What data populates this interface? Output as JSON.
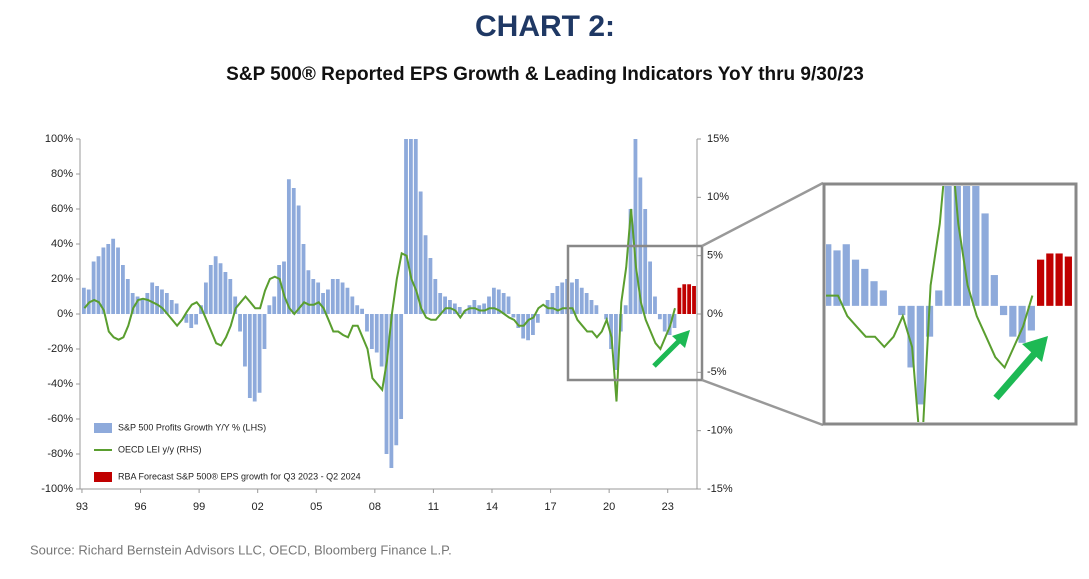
{
  "chart_data": {
    "type": "bar",
    "title": "CHART 2:",
    "subtitle": "S&P 500® Reported EPS Growth & Leading Indicators YoY thru 9/30/23",
    "source": "Source: Richard Bernstein Advisors LLC, OECD, Bloomberg Finance L.P.",
    "xlim": [
      1992.9,
      2024.5
    ],
    "xticks": [
      {
        "value": 1993,
        "label": "93"
      },
      {
        "value": 1996,
        "label": "96"
      },
      {
        "value": 1999,
        "label": "99"
      },
      {
        "value": 2002,
        "label": "02"
      },
      {
        "value": 2005,
        "label": "05"
      },
      {
        "value": 2008,
        "label": "08"
      },
      {
        "value": 2011,
        "label": "11"
      },
      {
        "value": 2014,
        "label": "14"
      },
      {
        "value": 2017,
        "label": "17"
      },
      {
        "value": 2020,
        "label": "20"
      },
      {
        "value": 2023,
        "label": "23"
      }
    ],
    "ylim": [
      -100,
      100
    ],
    "yticks": [
      {
        "value": 100,
        "label": "100%"
      },
      {
        "value": 80,
        "label": "80%"
      },
      {
        "value": 60,
        "label": "60%"
      },
      {
        "value": 40,
        "label": "40%"
      },
      {
        "value": 20,
        "label": "20%"
      },
      {
        "value": 0,
        "label": "0%"
      },
      {
        "value": -20,
        "label": "-20%"
      },
      {
        "value": -40,
        "label": "-40%"
      },
      {
        "value": -60,
        "label": "-60%"
      },
      {
        "value": -80,
        "label": "-80%"
      },
      {
        "value": -100,
        "label": "-100%"
      }
    ],
    "y2lim": [
      -15,
      15
    ],
    "y2ticks": [
      {
        "value": 15,
        "label": "15%"
      },
      {
        "value": 10,
        "label": "10%"
      },
      {
        "value": 5,
        "label": "5%"
      },
      {
        "value": 0,
        "label": "0%"
      },
      {
        "value": -5,
        "label": "-5%"
      },
      {
        "value": -10,
        "label": "-10%"
      },
      {
        "value": -15,
        "label": "-15%"
      }
    ],
    "grid": false,
    "legend": "lower-left",
    "x": [
      1993,
      1993.25,
      1993.5,
      1993.75,
      1994,
      1994.25,
      1994.5,
      1994.75,
      1995,
      1995.25,
      1995.5,
      1995.75,
      1996,
      1996.25,
      1996.5,
      1996.75,
      1997,
      1997.25,
      1997.5,
      1997.75,
      1998,
      1998.25,
      1998.5,
      1998.75,
      1999,
      1999.25,
      1999.5,
      1999.75,
      2000,
      2000.25,
      2000.5,
      2000.75,
      2001,
      2001.25,
      2001.5,
      2001.75,
      2002,
      2002.25,
      2002.5,
      2002.75,
      2003,
      2003.25,
      2003.5,
      2003.75,
      2004,
      2004.25,
      2004.5,
      2004.75,
      2005,
      2005.25,
      2005.5,
      2005.75,
      2006,
      2006.25,
      2006.5,
      2006.75,
      2007,
      2007.25,
      2007.5,
      2007.75,
      2008,
      2008.25,
      2008.5,
      2008.75,
      2009,
      2009.25,
      2009.5,
      2009.75,
      2010,
      2010.25,
      2010.5,
      2010.75,
      2011,
      2011.25,
      2011.5,
      2011.75,
      2012,
      2012.25,
      2012.5,
      2012.75,
      2013,
      2013.25,
      2013.5,
      2013.75,
      2014,
      2014.25,
      2014.5,
      2014.75,
      2015,
      2015.25,
      2015.5,
      2015.75,
      2016,
      2016.25,
      2016.5,
      2016.75,
      2017,
      2017.25,
      2017.5,
      2017.75,
      2018,
      2018.25,
      2018.5,
      2018.75,
      2019,
      2019.25,
      2019.5,
      2019.75,
      2020,
      2020.25,
      2020.5,
      2020.75,
      2021,
      2021.25,
      2021.5,
      2021.75,
      2022,
      2022.25,
      2022.5,
      2022.75,
      2023,
      2023.25
    ],
    "series": [
      {
        "name": "S&P 500 Profits Growth Y/Y % (LHS)",
        "type": "bar",
        "color": "#8eaadb",
        "values": [
          15,
          14,
          30,
          33,
          38,
          40,
          43,
          38,
          28,
          20,
          12,
          10,
          8,
          12,
          18,
          16,
          14,
          12,
          8,
          6,
          0,
          -5,
          -8,
          -6,
          5,
          18,
          28,
          33,
          29,
          24,
          20,
          10,
          -10,
          -30,
          -48,
          -50,
          -45,
          -20,
          5,
          10,
          28,
          30,
          77,
          72,
          62,
          40,
          25,
          20,
          18,
          12,
          14,
          20,
          20,
          18,
          15,
          10,
          5,
          3,
          -10,
          -20,
          -22,
          -30,
          -80,
          -88,
          -75,
          -60,
          100,
          100,
          100,
          70,
          45,
          32,
          20,
          12,
          10,
          8,
          6,
          4,
          2,
          5,
          8,
          5,
          6,
          10,
          15,
          14,
          12,
          10,
          -2,
          -8,
          -14,
          -15,
          -12,
          -5,
          0,
          8,
          12,
          16,
          18,
          20,
          18,
          20,
          15,
          12,
          8,
          5,
          0,
          -3,
          -20,
          -32,
          -10,
          5,
          60,
          100,
          78,
          60,
          30,
          10,
          -3,
          -10,
          -12,
          -8
        ]
      },
      {
        "name": "OECD LEI y/y (RHS)",
        "type": "line",
        "axis": "y2",
        "color": "#5a9e2f",
        "values": [
          0.5,
          1.0,
          1.2,
          1.0,
          0.3,
          -1.5,
          -2.0,
          -2.2,
          -2.0,
          -1.0,
          0.5,
          1.2,
          1.3,
          1.2,
          1.0,
          0.8,
          0.5,
          0.0,
          -0.5,
          -1.0,
          -0.5,
          0.2,
          0.8,
          1.0,
          0.5,
          -0.5,
          -1.5,
          -2.5,
          -2.7,
          -2.0,
          -1.0,
          0.5,
          1.0,
          1.5,
          1.0,
          0.5,
          0.5,
          2.0,
          3.0,
          3.2,
          3.0,
          1.5,
          0.5,
          0.0,
          0.5,
          1.0,
          0.8,
          0.8,
          1.0,
          0.5,
          -0.5,
          -1.5,
          -1.5,
          -1.8,
          -2.0,
          -1.0,
          -1.0,
          -2.0,
          -3.0,
          -5.5,
          -6.0,
          -6.5,
          -4.0,
          0.0,
          3.0,
          5.2,
          5.0,
          3.0,
          2.0,
          0.5,
          -0.3,
          -0.5,
          -0.5,
          0.0,
          0.5,
          0.5,
          0.3,
          -0.3,
          0.3,
          0.5,
          0.5,
          0.3,
          0.3,
          0.5,
          0.5,
          0.3,
          0.0,
          -0.3,
          -0.5,
          -1.0,
          -1.0,
          -0.5,
          -0.3,
          0.5,
          0.8,
          0.5,
          0.5,
          0.3,
          0.5,
          0.5,
          0.5,
          -0.5,
          -1.0,
          -1.5,
          -1.5,
          -2.0,
          -1.5,
          -0.5,
          -2.0,
          -7.5,
          1.0,
          4.0,
          9.0,
          4.0,
          1.0,
          -0.5,
          -1.5,
          -2.5,
          -3.0,
          -2.0,
          -1.0,
          0.5
        ]
      },
      {
        "name": "RBA Forecast  S&P 500® EPS growth for Q3 2023 - Q2 2024",
        "type": "bar",
        "color": "#c00000",
        "x": [
          2023.5,
          2023.75,
          2024,
          2024.25
        ],
        "values": [
          15,
          17,
          17,
          16
        ]
      }
    ]
  }
}
